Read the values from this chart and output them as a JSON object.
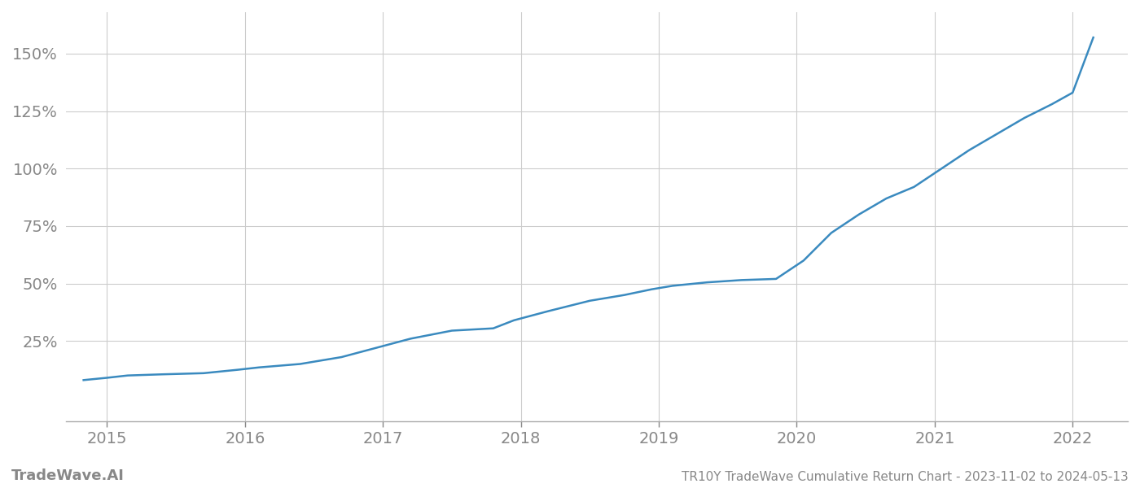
{
  "title": "TR10Y TradeWave Cumulative Return Chart - 2023-11-02 to 2024-05-13",
  "watermark": "TradeWave.AI",
  "line_color": "#3a8abf",
  "background_color": "#ffffff",
  "grid_color": "#cccccc",
  "x_years": [
    2015,
    2016,
    2017,
    2018,
    2019,
    2020,
    2021,
    2022
  ],
  "x_values": [
    2014.83,
    2015.0,
    2015.15,
    2015.4,
    2015.7,
    2015.95,
    2016.1,
    2016.4,
    2016.7,
    2016.95,
    2017.2,
    2017.5,
    2017.8,
    2017.95,
    2018.2,
    2018.5,
    2018.75,
    2018.95,
    2019.1,
    2019.35,
    2019.6,
    2019.85,
    2020.05,
    2020.25,
    2020.45,
    2020.65,
    2020.85,
    2021.05,
    2021.25,
    2021.45,
    2021.65,
    2021.85,
    2022.0,
    2022.15
  ],
  "y_values": [
    8.0,
    9.0,
    10.0,
    10.5,
    11.0,
    12.5,
    13.5,
    15.0,
    18.0,
    22.0,
    26.0,
    29.5,
    30.5,
    34.0,
    38.0,
    42.5,
    45.0,
    47.5,
    49.0,
    50.5,
    51.5,
    52.0,
    60.0,
    72.0,
    80.0,
    87.0,
    92.0,
    100.0,
    108.0,
    115.0,
    122.0,
    128.0,
    133.0,
    157.0
  ],
  "yticks": [
    25,
    50,
    75,
    100,
    125,
    150
  ],
  "ytick_labels": [
    "25%",
    "50%",
    "75%",
    "100%",
    "125%",
    "150%"
  ],
  "xlim": [
    2014.7,
    2022.4
  ],
  "ylim": [
    -10,
    168
  ],
  "tick_color": "#888888",
  "tick_fontsize": 14,
  "title_fontsize": 11,
  "watermark_fontsize": 13,
  "watermark_fontweight": "bold",
  "line_width": 1.8
}
